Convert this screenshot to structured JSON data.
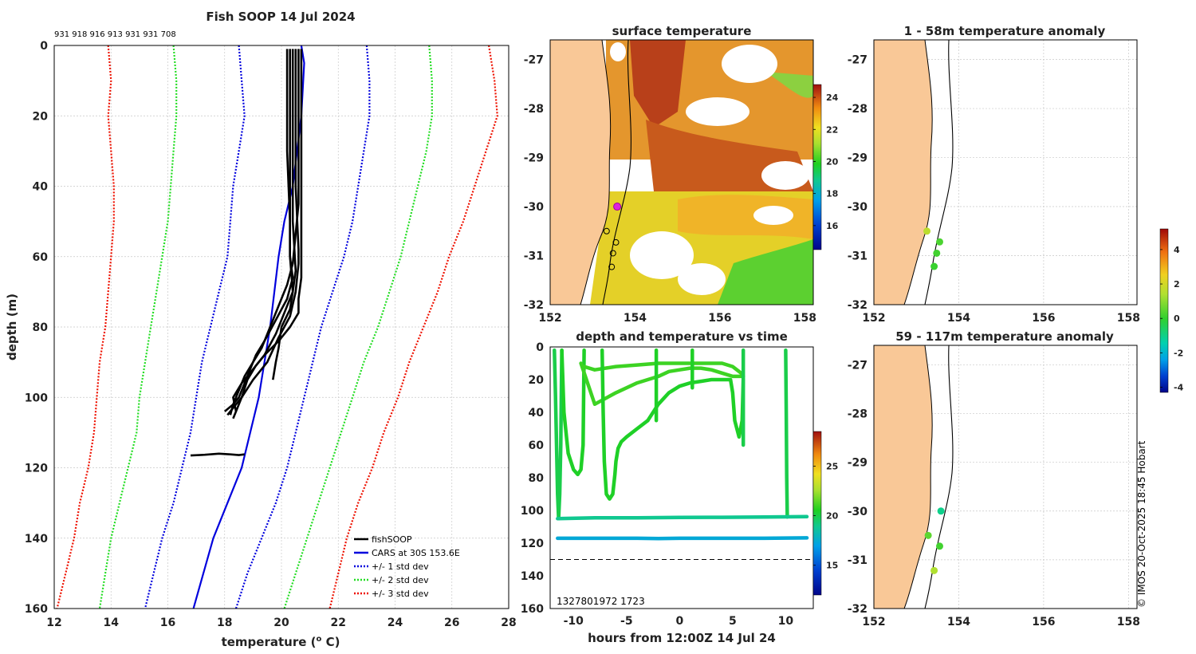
{
  "colors": {
    "fish": "#000000",
    "cars": "#0000dd",
    "std1": "#0000dd",
    "std2": "#22dd22",
    "std3": "#ee1100",
    "land": "#f9c897",
    "grid": "#c8c8c8",
    "magenta": "#dd22dd"
  },
  "chart_data": [
    {
      "id": "profile",
      "type": "line",
      "title": "Fish SOOP 14 Jul 2024",
      "subtitle": "931 918 916 913 931 931 708",
      "xlabel": "temperature (o C)",
      "xlabel_main": "temperature (",
      "xlabel_sup": "o",
      "xlabel_end": " C)",
      "ylabel": "depth (m)",
      "xlim": [
        12,
        28
      ],
      "ylim": [
        0,
        160
      ],
      "yreversed": true,
      "xticks": [
        12,
        14,
        16,
        18,
        20,
        22,
        24,
        26,
        28
      ],
      "yticks": [
        0,
        20,
        40,
        60,
        80,
        100,
        120,
        140,
        160
      ],
      "grid": true,
      "legend_position": "bottom-right",
      "legend": [
        "fishSOOP",
        "CARS at 30S 153.6E",
        "+/- 1 std dev",
        "+/- 2 std dev",
        "+/- 3 std dev"
      ],
      "cars": {
        "depth": [
          0,
          5,
          20,
          40,
          50,
          60,
          80,
          100,
          120,
          140,
          160
        ],
        "temp": [
          20.7,
          20.8,
          20.7,
          20.4,
          20.1,
          19.9,
          19.6,
          19.2,
          18.6,
          17.6,
          16.9
        ]
      },
      "std": {
        "depth": [
          0,
          10,
          20,
          30,
          40,
          50,
          60,
          70,
          80,
          90,
          100,
          110,
          120,
          130,
          140,
          150,
          160
        ],
        "minus3": [
          13.9,
          14.0,
          13.9,
          14.0,
          14.1,
          14.1,
          14.0,
          13.9,
          13.8,
          13.6,
          13.5,
          13.4,
          13.2,
          12.9,
          12.7,
          12.4,
          12.1
        ],
        "minus2": [
          16.2,
          16.3,
          16.3,
          16.2,
          16.1,
          16.0,
          15.8,
          15.6,
          15.4,
          15.2,
          15.0,
          14.9,
          14.6,
          14.3,
          14.0,
          13.8,
          13.6
        ],
        "minus1": [
          18.5,
          18.6,
          18.7,
          18.5,
          18.3,
          18.2,
          18.1,
          17.8,
          17.5,
          17.2,
          17.0,
          16.8,
          16.5,
          16.2,
          15.8,
          15.5,
          15.2
        ],
        "plus1": [
          23.0,
          23.1,
          23.1,
          22.9,
          22.7,
          22.5,
          22.2,
          21.8,
          21.4,
          21.1,
          20.8,
          20.5,
          20.2,
          19.8,
          19.3,
          18.8,
          18.4
        ],
        "plus2": [
          25.2,
          25.3,
          25.3,
          25.1,
          24.8,
          24.5,
          24.2,
          23.8,
          23.4,
          22.9,
          22.5,
          22.1,
          21.7,
          21.3,
          20.9,
          20.5,
          20.1
        ],
        "plus3": [
          27.3,
          27.5,
          27.6,
          27.2,
          26.8,
          26.4,
          25.9,
          25.5,
          25.0,
          24.5,
          24.1,
          23.6,
          23.2,
          22.7,
          22.3,
          22.0,
          21.7
        ]
      },
      "casts": [
        {
          "depth": [
            1,
            10,
            30,
            50,
            60,
            70,
            75,
            80,
            86,
            90,
            95
          ],
          "temp": [
            20.2,
            20.2,
            20.2,
            20.3,
            20.3,
            20.4,
            20.3,
            20.0,
            19.9,
            19.8,
            19.7
          ]
        },
        {
          "depth": [
            1,
            20,
            40,
            58,
            62,
            70,
            77,
            83,
            90,
            95,
            100,
            103,
            105
          ],
          "temp": [
            20.5,
            20.5,
            20.5,
            20.6,
            20.6,
            20.5,
            20.3,
            19.9,
            19.5,
            19.0,
            18.6,
            18.3,
            18.1
          ]
        },
        {
          "depth": [
            1,
            15,
            40,
            60,
            66,
            72,
            78,
            84,
            88,
            92,
            96,
            100,
            102,
            104
          ],
          "temp": [
            20.3,
            20.3,
            20.3,
            20.3,
            20.4,
            20.2,
            19.8,
            19.4,
            19.1,
            18.9,
            18.7,
            18.5,
            18.3,
            18.0
          ]
        },
        {
          "depth": [
            1,
            20,
            45,
            62,
            68,
            74,
            80,
            86,
            90,
            94,
            98,
            102,
            105
          ],
          "temp": [
            20.6,
            20.6,
            20.6,
            20.4,
            20.2,
            19.9,
            19.6,
            19.3,
            19.0,
            18.7,
            18.5,
            18.3,
            18.2
          ]
        },
        {
          "depth": [
            1,
            20,
            50,
            64,
            70,
            76,
            82,
            88,
            91,
            95,
            100,
            104,
            106
          ],
          "temp": [
            20.4,
            20.4,
            20.4,
            20.5,
            20.4,
            20.1,
            19.8,
            19.4,
            19.1,
            18.8,
            18.6,
            18.4,
            18.3
          ]
        },
        {
          "depth": [
            1,
            20,
            50,
            66,
            72,
            76,
            80,
            84,
            88,
            92,
            96,
            100,
            104
          ],
          "temp": [
            20.7,
            20.7,
            20.7,
            20.7,
            20.6,
            20.6,
            20.3,
            19.9,
            19.4,
            19.0,
            18.6,
            18.3,
            18.4
          ]
        },
        {
          "depth": [
            116.5,
            116.3,
            116.0,
            116.2,
            116.4,
            116.2
          ],
          "temp": [
            16.8,
            17.3,
            17.8,
            18.2,
            18.5,
            18.7
          ]
        }
      ]
    },
    {
      "id": "sst_map",
      "type": "heatmap",
      "title": "surface temperature",
      "xlim": [
        152,
        158.2
      ],
      "ylim": [
        -32,
        -26.6
      ],
      "xticks": [
        152,
        154,
        156,
        158
      ],
      "yticks": [
        -27,
        -28,
        -29,
        -30,
        -31,
        -32
      ],
      "colorbar_ticks": [
        16,
        18,
        20,
        22,
        24
      ],
      "colorbar_range": [
        14.5,
        24.8
      ],
      "highlight_station": {
        "lon": 153.58,
        "lat": -30.0
      },
      "stations": [
        {
          "lon": 153.33,
          "lat": -30.5
        },
        {
          "lon": 153.55,
          "lat": -30.73
        },
        {
          "lon": 153.48,
          "lat": -30.95
        },
        {
          "lon": 153.45,
          "lat": -31.23
        }
      ]
    },
    {
      "id": "time_series",
      "type": "scatter",
      "title": "depth and temperature vs time",
      "xlabel": "hours from 12:00Z 14 Jul 24",
      "xlim": [
        -12.2,
        12.6
      ],
      "ylim": [
        0,
        160
      ],
      "yreversed": true,
      "xticks": [
        -10,
        -5,
        0,
        5,
        10
      ],
      "yticks": [
        0,
        20,
        40,
        60,
        80,
        100,
        120,
        140,
        160
      ],
      "xtick_labels": [
        "-10",
        "-5",
        "0",
        "5",
        "10"
      ],
      "hline_depth": 130,
      "annotation": "1327801972 1723",
      "colorbar_ticks": [
        15,
        20,
        25
      ],
      "colorbar_range": [
        12,
        28.5
      ],
      "segments": [
        {
          "hours": [
            -11.8,
            -11.7,
            -11.6,
            -11.5,
            -11.4,
            -11.3,
            -11.2,
            -11.1
          ],
          "depth": [
            2,
            30,
            60,
            90,
            105,
            90,
            60,
            2
          ],
          "temp": 20
        },
        {
          "hours": [
            -11.1,
            -10.9,
            -10.5,
            -10.0,
            -9.6,
            -9.3,
            -9.1,
            -9.0
          ],
          "depth": [
            2,
            40,
            65,
            75,
            78,
            75,
            60,
            2
          ],
          "temp": 20.5
        },
        {
          "hours": [
            -9.3,
            -8.0,
            -6.0,
            -4.0,
            -2.0,
            -1.0,
            0.0,
            1.0,
            2.0,
            3.0,
            4.0,
            5.0,
            6.0
          ],
          "depth": [
            10,
            35,
            28,
            22,
            18,
            15,
            14,
            13,
            13,
            14,
            16,
            18,
            18
          ],
          "temp": 21
        },
        {
          "hours": [
            -9.0,
            -8.0,
            -6.0,
            -4.0,
            -2.0,
            0.0,
            2.0,
            4.0,
            5.0,
            5.8,
            6.0
          ],
          "depth": [
            12,
            14,
            12,
            11,
            10,
            10,
            10,
            10,
            12,
            16,
            18
          ],
          "temp": 21
        },
        {
          "hours": [
            -7.3,
            -7.2,
            -7.1,
            -6.9,
            -6.6,
            -6.3,
            -6.1,
            -6.0,
            -5.8,
            -5.5,
            -5.0,
            -4.0,
            -3.0
          ],
          "depth": [
            2,
            40,
            70,
            90,
            93,
            90,
            78,
            70,
            62,
            58,
            55,
            50,
            45
          ],
          "temp": 20.5
        },
        {
          "hours": [
            -3.0,
            -2.0,
            -1.0,
            0.0,
            1.0,
            2.0,
            3.0,
            4.0,
            4.8,
            5.0,
            5.2,
            5.6,
            5.9,
            6.0
          ],
          "depth": [
            45,
            35,
            28,
            24,
            22,
            21,
            20,
            20,
            20,
            28,
            45,
            55,
            45,
            20
          ],
          "temp": 20.5
        },
        {
          "hours": [
            6.0,
            6.0,
            6.0
          ],
          "depth": [
            20,
            60,
            2
          ],
          "temp": 20
        },
        {
          "hours": [
            -2.2,
            -2.2,
            -2.2
          ],
          "depth": [
            20,
            45,
            2
          ],
          "temp": 20.5
        },
        {
          "hours": [
            1.2,
            1.2,
            1.2
          ],
          "depth": [
            10,
            25,
            2
          ],
          "temp": 20.5
        },
        {
          "hours": [
            10.0,
            10.05,
            10.1,
            10.15
          ],
          "depth": [
            2,
            40,
            80,
            104
          ],
          "temp": 20
        },
        {
          "hours": [
            -11.5,
            -8.0,
            -4.0,
            0.0,
            4.0,
            8.0,
            12.0
          ],
          "depth": [
            105,
            104.5,
            104.5,
            104.3,
            104.2,
            104.0,
            103.8
          ],
          "temp": 19
        },
        {
          "hours": [
            -11.5,
            -8.0,
            -4.0,
            -2.0,
            0.0,
            4.0,
            8.0,
            12.0
          ],
          "depth": [
            117,
            117,
            117,
            117.2,
            117,
            117,
            117,
            116.8
          ],
          "temp": 17.4
        }
      ]
    },
    {
      "id": "anomaly_shallow",
      "type": "scatter",
      "title": "1 - 58m temperature anomaly",
      "xlim": [
        152,
        158.2
      ],
      "ylim": [
        -32,
        -26.6
      ],
      "xticks": [
        152,
        154,
        156,
        158
      ],
      "yticks": [
        -27,
        -28,
        -29,
        -30,
        -31,
        -32
      ],
      "points": [
        {
          "lon": 153.25,
          "lat": -30.5,
          "anom": 1.6
        },
        {
          "lon": 153.55,
          "lat": -30.72,
          "anom": 0.3
        },
        {
          "lon": 153.48,
          "lat": -30.95,
          "anom": 0.2
        },
        {
          "lon": 153.42,
          "lat": -31.22,
          "anom": 0.1
        }
      ]
    },
    {
      "id": "anomaly_deep",
      "type": "scatter",
      "title": "59 - 117m temperature anomaly",
      "xlim": [
        152,
        158.2
      ],
      "ylim": [
        -32,
        -26.6
      ],
      "xticks": [
        152,
        154,
        156,
        158
      ],
      "yticks": [
        -27,
        -28,
        -29,
        -30,
        -31,
        -32
      ],
      "points": [
        {
          "lon": 153.58,
          "lat": -30.0,
          "anom": -1.0
        },
        {
          "lon": 153.28,
          "lat": -30.5,
          "anom": 0.5
        },
        {
          "lon": 153.55,
          "lat": -30.72,
          "anom": 0.2
        },
        {
          "lon": 153.42,
          "lat": -31.22,
          "anom": 1.4
        }
      ]
    },
    {
      "id": "anomaly_colorbar",
      "type": "heatmap",
      "ticks": [
        4,
        2,
        0,
        -2,
        -4
      ],
      "range": [
        -4.3,
        5.2
      ]
    }
  ],
  "credit": "© IMOS 20-Oct-2025 18:45 Hobart"
}
